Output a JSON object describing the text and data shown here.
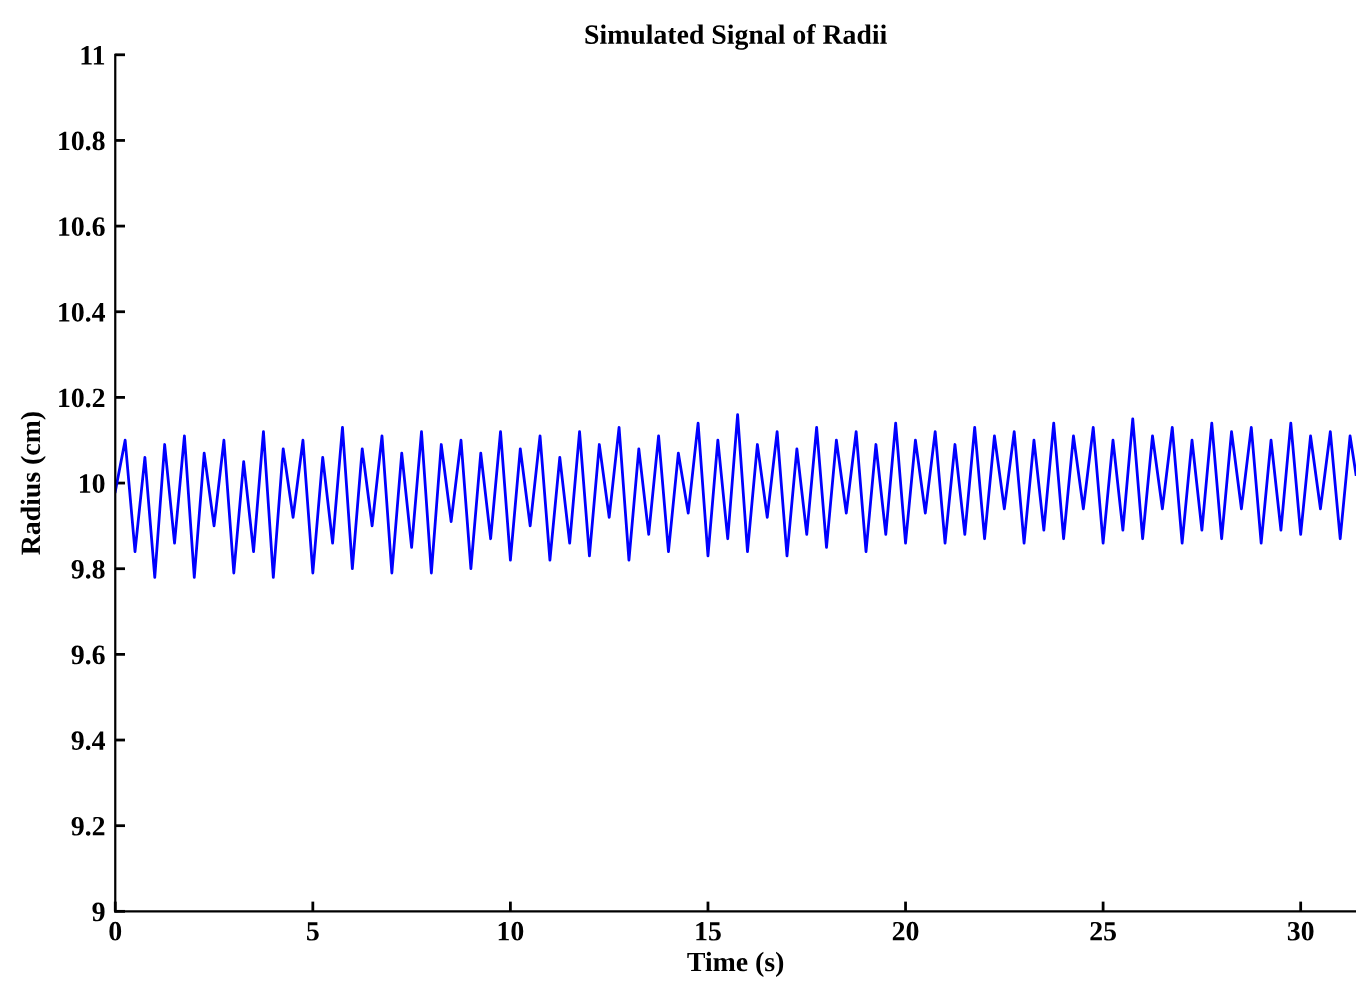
{
  "chart_data": {
    "type": "line",
    "title": "Simulated Signal of Radii",
    "xlabel": "Time (s)",
    "ylabel": "Radius (cm)",
    "x": [
      0,
      0.25,
      0.5,
      0.75,
      1,
      1.25,
      1.5,
      1.75,
      2,
      2.25,
      2.5,
      2.75,
      3,
      3.25,
      3.5,
      3.75,
      4,
      4.25,
      4.5,
      4.75,
      5,
      5.25,
      5.5,
      5.75,
      6,
      6.25,
      6.5,
      6.75,
      7,
      7.25,
      7.5,
      7.75,
      8,
      8.25,
      8.5,
      8.75,
      9,
      9.25,
      9.5,
      9.75,
      10,
      10.25,
      10.5,
      10.75,
      11,
      11.25,
      11.5,
      11.75,
      12,
      12.25,
      12.5,
      12.75,
      13,
      13.25,
      13.5,
      13.75,
      14,
      14.25,
      14.5,
      14.75,
      15,
      15.25,
      15.5,
      15.75,
      16,
      16.25,
      16.5,
      16.75,
      17,
      17.25,
      17.5,
      17.75,
      18,
      18.25,
      18.5,
      18.75,
      19,
      19.25,
      19.5,
      19.75,
      20,
      20.25,
      20.5,
      20.75,
      21,
      21.25,
      21.5,
      21.75,
      22,
      22.25,
      22.5,
      22.75,
      23,
      23.25,
      23.5,
      23.75,
      24,
      24.25,
      24.5,
      24.75,
      25,
      25.25,
      25.5,
      25.75,
      26,
      26.25,
      26.5,
      26.75,
      27,
      27.25,
      27.5,
      27.75,
      28,
      28.25,
      28.5,
      28.75,
      29,
      29.25,
      29.5,
      29.75,
      30,
      30.25,
      30.5,
      30.75,
      31,
      31.25,
      31.4
    ],
    "series": [
      {
        "color": "#0000ff",
        "values": [
          9.98,
          10.1,
          9.84,
          10.06,
          9.78,
          10.09,
          9.86,
          10.11,
          9.78,
          10.07,
          9.9,
          10.1,
          9.79,
          10.05,
          9.84,
          10.12,
          9.78,
          10.08,
          9.92,
          10.1,
          9.79,
          10.06,
          9.86,
          10.13,
          9.8,
          10.08,
          9.9,
          10.11,
          9.79,
          10.07,
          9.85,
          10.12,
          9.79,
          10.09,
          9.91,
          10.1,
          9.8,
          10.07,
          9.87,
          10.12,
          9.82,
          10.08,
          9.9,
          10.11,
          9.82,
          10.06,
          9.86,
          10.12,
          9.83,
          10.09,
          9.92,
          10.13,
          9.82,
          10.08,
          9.88,
          10.11,
          9.84,
          10.07,
          9.93,
          10.14,
          9.83,
          10.1,
          9.87,
          10.16,
          9.84,
          10.09,
          9.92,
          10.12,
          9.83,
          10.08,
          9.88,
          10.13,
          9.85,
          10.1,
          9.93,
          10.12,
          9.84,
          10.09,
          9.88,
          10.14,
          9.86,
          10.1,
          9.93,
          10.12,
          9.86,
          10.09,
          9.88,
          10.13,
          9.87,
          10.11,
          9.94,
          10.12,
          9.86,
          10.1,
          9.89,
          10.14,
          9.87,
          10.11,
          9.94,
          10.13,
          9.86,
          10.1,
          9.89,
          10.15,
          9.87,
          10.11,
          9.94,
          10.13,
          9.86,
          10.1,
          9.89,
          10.14,
          9.87,
          10.12,
          9.94,
          10.13,
          9.86,
          10.1,
          9.89,
          10.14,
          9.88,
          10.11,
          9.94,
          10.12,
          9.87,
          10.11,
          10.02
        ]
      }
    ],
    "xlim": [
      0,
      31.4
    ],
    "xticks": [
      0,
      5,
      10,
      15,
      20,
      25,
      30
    ],
    "ylim": [
      9,
      11
    ],
    "yticks": [
      9,
      9.2,
      9.4,
      9.6,
      9.8,
      10,
      10.2,
      10.4,
      10.6,
      10.8,
      11
    ],
    "line_style": "solid",
    "marker": "none",
    "grid": false,
    "legend": false
  }
}
